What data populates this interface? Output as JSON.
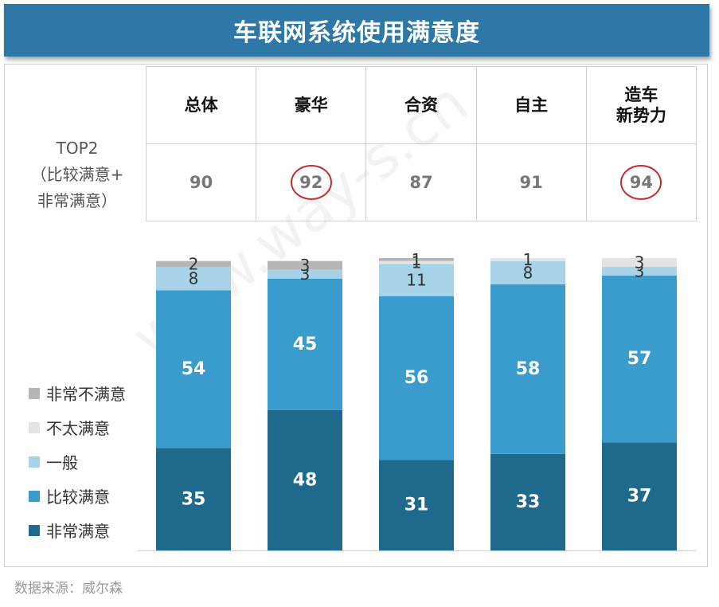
{
  "title": "车联网系统使用满意度",
  "top2_label": [
    "TOP2",
    "（比较满意+",
    "非常满意）"
  ],
  "groups": [
    {
      "name_lines": [
        "总体"
      ],
      "top2": "90",
      "highlight": false
    },
    {
      "name_lines": [
        "豪华"
      ],
      "top2": "92",
      "highlight": true
    },
    {
      "name_lines": [
        "合资"
      ],
      "top2": "87",
      "highlight": false
    },
    {
      "name_lines": [
        "自主"
      ],
      "top2": "91",
      "highlight": false
    },
    {
      "name_lines": [
        "造车",
        "新势力"
      ],
      "top2": "94",
      "highlight": true
    }
  ],
  "legend": [
    {
      "label": "非常不满意",
      "color": "#b5b6b8"
    },
    {
      "label": "不太满意",
      "color": "#e3e4e6"
    },
    {
      "label": "一般",
      "color": "#a7d3e8"
    },
    {
      "label": "比较满意",
      "color": "#3a9bcd"
    },
    {
      "label": "非常满意",
      "color": "#1f6a8c"
    }
  ],
  "chart_data": {
    "type": "bar",
    "stacked": true,
    "categories": [
      "总体",
      "豪华",
      "合资",
      "自主",
      "造车新势力"
    ],
    "series": [
      {
        "name": "非常满意",
        "color": "#1f6a8c",
        "values": [
          35,
          48,
          31,
          33,
          37
        ]
      },
      {
        "name": "比较满意",
        "color": "#3a9bcd",
        "values": [
          54,
          45,
          56,
          58,
          57
        ]
      },
      {
        "name": "一般",
        "color": "#a7d3e8",
        "values": [
          8,
          3,
          11,
          8,
          3
        ]
      },
      {
        "name": "不太满意",
        "color": "#e3e4e6",
        "values": [
          null,
          null,
          1,
          1,
          3
        ]
      },
      {
        "name": "非常不满意",
        "color": "#b5b6b8",
        "values": [
          2,
          3,
          1,
          null,
          null
        ]
      }
    ],
    "ylim": [
      0,
      100
    ]
  },
  "source": "数据来源：威尔森",
  "watermark": "www.way-s.cn"
}
